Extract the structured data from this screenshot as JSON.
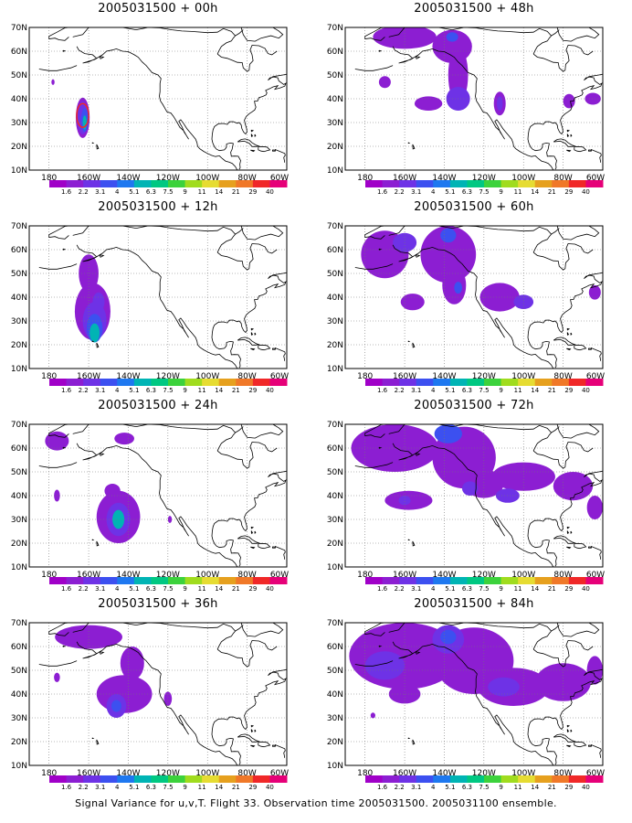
{
  "figure": {
    "caption": "Signal Variance for u,v,T. Flight 33. Observation time 2005031500. 2005031100 ensemble."
  },
  "map": {
    "type": "lat-lon contour map",
    "lon_range": [
      -190,
      -60
    ],
    "lat_range": [
      10,
      70
    ],
    "lat_ticks": [
      {
        "value": 10,
        "label": "10N"
      },
      {
        "value": 20,
        "label": "20N"
      },
      {
        "value": 30,
        "label": "30N"
      },
      {
        "value": 40,
        "label": "40N"
      },
      {
        "value": 50,
        "label": "50N"
      },
      {
        "value": 60,
        "label": "60N"
      },
      {
        "value": 70,
        "label": "70N"
      }
    ],
    "lon_ticks": [
      {
        "value": -180,
        "label": "180"
      },
      {
        "value": -160,
        "label": "160W"
      },
      {
        "value": -140,
        "label": "140W"
      },
      {
        "value": -120,
        "label": "120W"
      },
      {
        "value": -100,
        "label": "100W"
      },
      {
        "value": -80,
        "label": "80W"
      },
      {
        "value": -60,
        "label": "60W"
      }
    ],
    "grid": "dotted"
  },
  "colorbar": {
    "labels": [
      "1.6",
      "2.2",
      "3.1",
      "4",
      "5.1",
      "6.3",
      "7.5",
      "9",
      "11",
      "14",
      "21",
      "29",
      "40"
    ],
    "colors": [
      "#a000c8",
      "#8c1ed2",
      "#6e32e6",
      "#3c50f0",
      "#1e78f0",
      "#00b4b4",
      "#00c882",
      "#3cd23c",
      "#a0dc1e",
      "#e6dc32",
      "#e6a01e",
      "#f07828",
      "#f02828",
      "#e60078"
    ]
  },
  "chart_data": [
    {
      "type": "heatmap",
      "title": "2005031500 + 00h",
      "blobs": [
        {
          "lon": -163,
          "lat": 32,
          "rx": 3.5,
          "ry": 8.5,
          "level": 1
        },
        {
          "lon": -163,
          "lat": 32,
          "rx": 2.6,
          "ry": 7.0,
          "level": 2
        },
        {
          "lon": -162,
          "lat": 31,
          "rx": 1.8,
          "ry": 5.0,
          "level": 3
        },
        {
          "lon": -162,
          "lat": 30,
          "rx": 1.0,
          "ry": 3.0,
          "level": 5
        },
        {
          "lon": -178,
          "lat": 47,
          "rx": 0.8,
          "ry": 1.2,
          "level": 1
        }
      ],
      "contour": {
        "lon": -163,
        "lat": 33,
        "rx": 3.0,
        "ry": 5.0,
        "color": "#f02828"
      }
    },
    {
      "type": "heatmap",
      "title": "2005031500 + 48h",
      "blobs": [
        {
          "lon": -160,
          "lat": 66,
          "rx": 16,
          "ry": 5,
          "level": 1
        },
        {
          "lon": -136,
          "lat": 62,
          "rx": 10,
          "ry": 7,
          "level": 1
        },
        {
          "lon": -133,
          "lat": 50,
          "rx": 5,
          "ry": 12,
          "level": 1
        },
        {
          "lon": -133,
          "lat": 40,
          "rx": 6,
          "ry": 5,
          "level": 2
        },
        {
          "lon": -136,
          "lat": 66,
          "rx": 3,
          "ry": 2,
          "level": 3
        },
        {
          "lon": -148,
          "lat": 38,
          "rx": 7,
          "ry": 3,
          "level": 1
        },
        {
          "lon": -170,
          "lat": 47,
          "rx": 3,
          "ry": 2.5,
          "level": 1
        },
        {
          "lon": -112,
          "lat": 38,
          "rx": 3,
          "ry": 5,
          "level": 1
        },
        {
          "lon": -112,
          "lat": 38,
          "rx": 1.5,
          "ry": 3,
          "level": 2
        },
        {
          "lon": -77,
          "lat": 39,
          "rx": 3,
          "ry": 3,
          "level": 1
        },
        {
          "lon": -65,
          "lat": 40,
          "rx": 4,
          "ry": 2.5,
          "level": 1
        }
      ]
    },
    {
      "type": "heatmap",
      "title": "2005031500 + 12h",
      "blobs": [
        {
          "lon": -158,
          "lat": 34,
          "rx": 9,
          "ry": 12,
          "level": 1
        },
        {
          "lon": -160,
          "lat": 50,
          "rx": 5,
          "ry": 8,
          "level": 1
        },
        {
          "lon": -157,
          "lat": 30,
          "rx": 6,
          "ry": 8,
          "level": 2
        },
        {
          "lon": -157,
          "lat": 27,
          "rx": 4,
          "ry": 6,
          "level": 3
        },
        {
          "lon": -157,
          "lat": 25,
          "rx": 2.5,
          "ry": 4,
          "level": 5
        },
        {
          "lon": -155,
          "lat": 38,
          "rx": 3,
          "ry": 4,
          "level": 2
        }
      ]
    },
    {
      "type": "heatmap",
      "title": "2005031500 + 60h",
      "blobs": [
        {
          "lon": -170,
          "lat": 58,
          "rx": 12,
          "ry": 10,
          "level": 1
        },
        {
          "lon": -138,
          "lat": 58,
          "rx": 14,
          "ry": 12,
          "level": 1
        },
        {
          "lon": -135,
          "lat": 45,
          "rx": 6,
          "ry": 8,
          "level": 1
        },
        {
          "lon": -138,
          "lat": 66,
          "rx": 4,
          "ry": 3,
          "level": 3
        },
        {
          "lon": -133,
          "lat": 44,
          "rx": 2,
          "ry": 2.5,
          "level": 3
        },
        {
          "lon": -156,
          "lat": 38,
          "rx": 6,
          "ry": 3.5,
          "level": 1
        },
        {
          "lon": -112,
          "lat": 40,
          "rx": 10,
          "ry": 6,
          "level": 1
        },
        {
          "lon": -100,
          "lat": 38,
          "rx": 5,
          "ry": 3,
          "level": 2
        },
        {
          "lon": -64,
          "lat": 42,
          "rx": 3,
          "ry": 3,
          "level": 1
        },
        {
          "lon": -160,
          "lat": 63,
          "rx": 6,
          "ry": 4,
          "level": 2
        }
      ]
    },
    {
      "type": "heatmap",
      "title": "2005031500 + 24h",
      "blobs": [
        {
          "lon": -145,
          "lat": 31,
          "rx": 11,
          "ry": 11,
          "level": 1
        },
        {
          "lon": -145,
          "lat": 30,
          "rx": 6,
          "ry": 7,
          "level": 2
        },
        {
          "lon": -145,
          "lat": 30,
          "rx": 3,
          "ry": 4,
          "level": 5
        },
        {
          "lon": -148,
          "lat": 42,
          "rx": 4,
          "ry": 3,
          "level": 1
        },
        {
          "lon": -176,
          "lat": 63,
          "rx": 6,
          "ry": 4,
          "level": 1
        },
        {
          "lon": -142,
          "lat": 64,
          "rx": 5,
          "ry": 2.5,
          "level": 1
        },
        {
          "lon": -176,
          "lat": 40,
          "rx": 1.5,
          "ry": 2.5,
          "level": 1
        },
        {
          "lon": -119,
          "lat": 30,
          "rx": 1,
          "ry": 1.5,
          "level": 1
        }
      ]
    },
    {
      "type": "heatmap",
      "title": "2005031500 + 72h",
      "blobs": [
        {
          "lon": -165,
          "lat": 60,
          "rx": 22,
          "ry": 10,
          "level": 1
        },
        {
          "lon": -130,
          "lat": 56,
          "rx": 16,
          "ry": 13,
          "level": 1
        },
        {
          "lon": -138,
          "lat": 66,
          "rx": 7,
          "ry": 4,
          "level": 3
        },
        {
          "lon": -120,
          "lat": 45,
          "rx": 10,
          "ry": 6,
          "level": 1
        },
        {
          "lon": -127,
          "lat": 43,
          "rx": 4,
          "ry": 3,
          "level": 2
        },
        {
          "lon": -100,
          "lat": 48,
          "rx": 16,
          "ry": 6,
          "level": 1
        },
        {
          "lon": -108,
          "lat": 40,
          "rx": 6,
          "ry": 3,
          "level": 2
        },
        {
          "lon": -158,
          "lat": 38,
          "rx": 12,
          "ry": 4,
          "level": 1
        },
        {
          "lon": -160,
          "lat": 38,
          "rx": 3,
          "ry": 2,
          "level": 2
        },
        {
          "lon": -75,
          "lat": 44,
          "rx": 10,
          "ry": 6,
          "level": 1
        },
        {
          "lon": -64,
          "lat": 35,
          "rx": 4,
          "ry": 5,
          "level": 1
        }
      ]
    },
    {
      "type": "heatmap",
      "title": "2005031500 + 36h",
      "blobs": [
        {
          "lon": -142,
          "lat": 40,
          "rx": 14,
          "ry": 8,
          "level": 1
        },
        {
          "lon": -146,
          "lat": 35,
          "rx": 5,
          "ry": 5,
          "level": 2
        },
        {
          "lon": -146,
          "lat": 35,
          "rx": 2.5,
          "ry": 2.5,
          "level": 3
        },
        {
          "lon": -160,
          "lat": 64,
          "rx": 17,
          "ry": 5,
          "level": 1
        },
        {
          "lon": -138,
          "lat": 53,
          "rx": 6,
          "ry": 7,
          "level": 1
        },
        {
          "lon": -176,
          "lat": 47,
          "rx": 1.5,
          "ry": 2,
          "level": 1
        },
        {
          "lon": -120,
          "lat": 38,
          "rx": 2,
          "ry": 3,
          "level": 1
        }
      ]
    },
    {
      "type": "heatmap",
      "title": "2005031500 + 84h",
      "blobs": [
        {
          "lon": -160,
          "lat": 56,
          "rx": 28,
          "ry": 14,
          "level": 1
        },
        {
          "lon": -125,
          "lat": 54,
          "rx": 20,
          "ry": 14,
          "level": 1
        },
        {
          "lon": -138,
          "lat": 63,
          "rx": 8,
          "ry": 6,
          "level": 2
        },
        {
          "lon": -138,
          "lat": 64,
          "rx": 4,
          "ry": 3,
          "level": 3
        },
        {
          "lon": -105,
          "lat": 43,
          "rx": 18,
          "ry": 8,
          "level": 1
        },
        {
          "lon": -110,
          "lat": 43,
          "rx": 8,
          "ry": 4,
          "level": 2
        },
        {
          "lon": -80,
          "lat": 45,
          "rx": 14,
          "ry": 8,
          "level": 1
        },
        {
          "lon": -160,
          "lat": 40,
          "rx": 8,
          "ry": 4,
          "level": 1
        },
        {
          "lon": -170,
          "lat": 52,
          "rx": 10,
          "ry": 6,
          "level": 2
        },
        {
          "lon": -176,
          "lat": 31,
          "rx": 1.2,
          "ry": 1.2,
          "level": 1
        },
        {
          "lon": -64,
          "lat": 50,
          "rx": 4,
          "ry": 6,
          "level": 1
        }
      ]
    }
  ]
}
